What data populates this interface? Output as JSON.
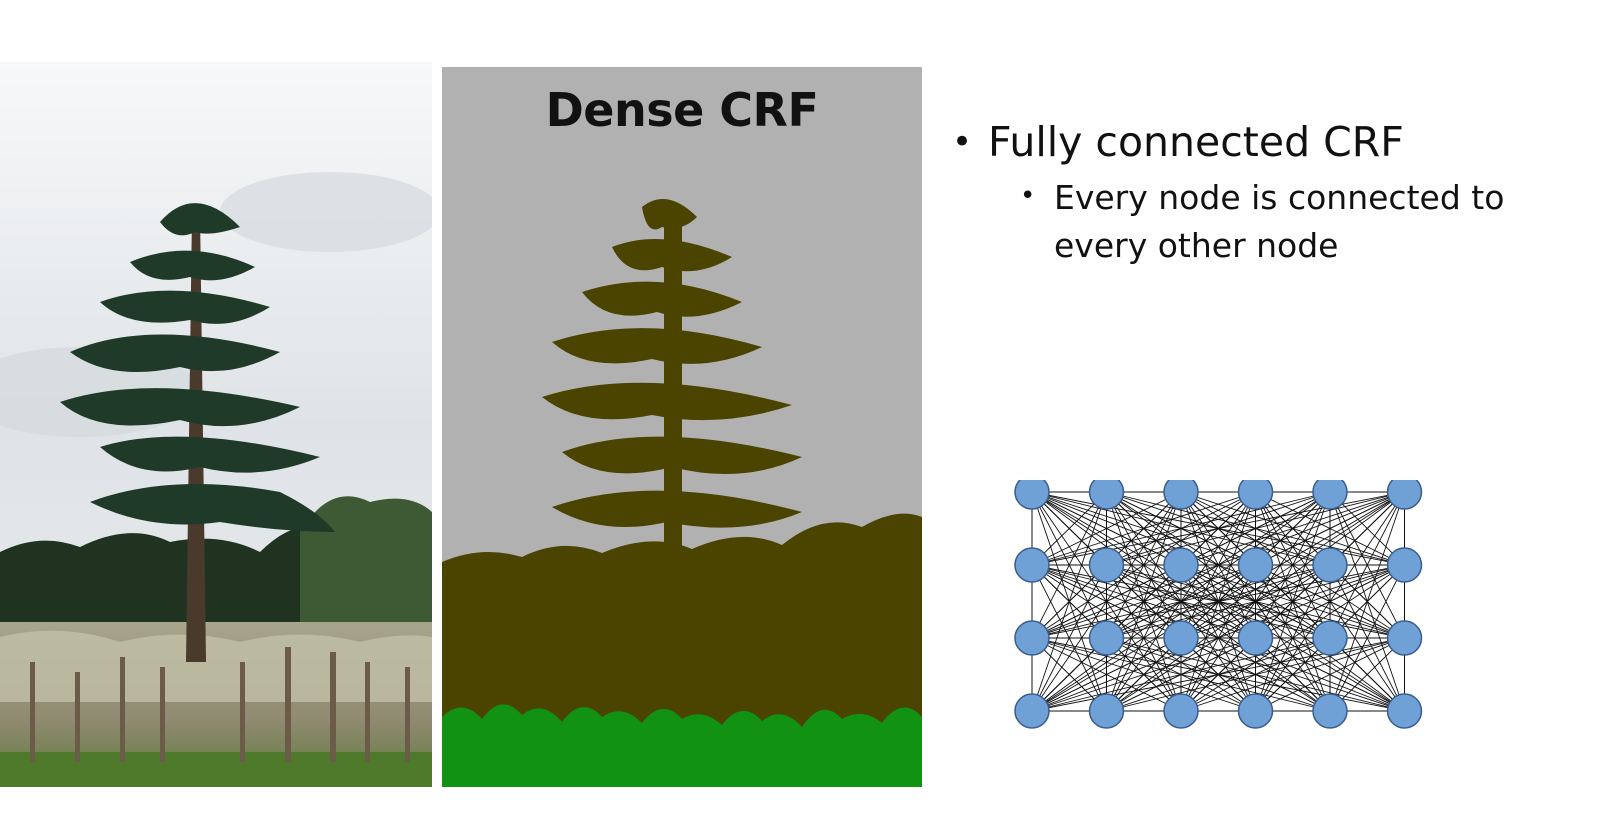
{
  "segmentation": {
    "title": "Dense CRF",
    "colors": {
      "background": "#b1b1b1",
      "object": "#4a4400",
      "grass": "#129212"
    }
  },
  "bullets": {
    "level1": "Fully connected CRF",
    "level2": "Every node is connected to every other node",
    "marker": "•"
  },
  "graph": {
    "rows": 4,
    "cols": 6,
    "node_fill": "#6fa0d6",
    "node_stroke": "#3a5d8c",
    "edge_color": "#111111"
  }
}
